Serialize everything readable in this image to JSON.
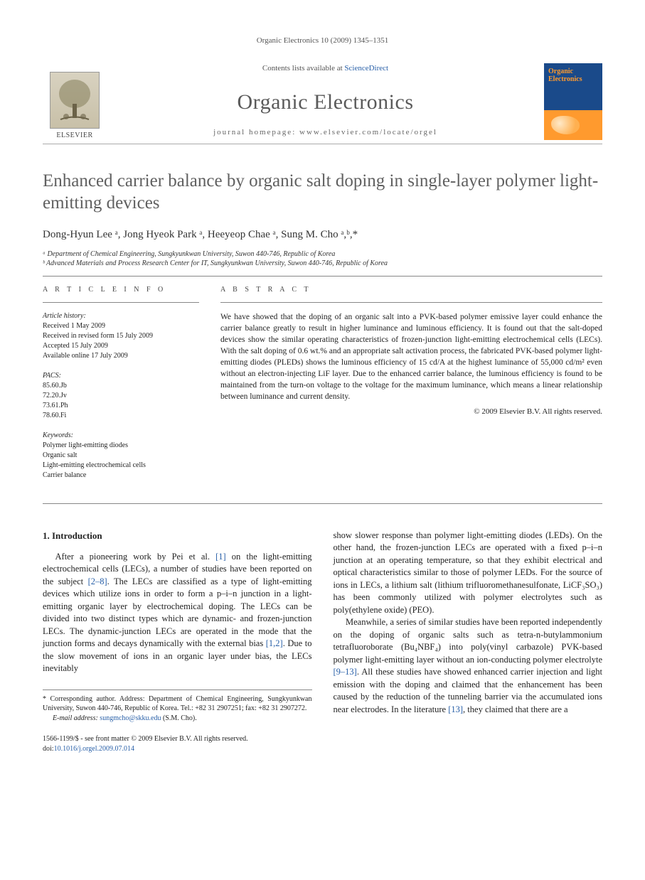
{
  "running_head": "Organic Electronics 10 (2009) 1345–1351",
  "banner": {
    "contents_prefix": "Contents lists available at ",
    "contents_link": "ScienceDirect",
    "journal": "Organic Electronics",
    "homepage_label": "journal homepage: www.elsevier.com/locate/orgel",
    "publisher": "ELSEVIER",
    "cover_title_1": "Organic",
    "cover_title_2": "Electronics"
  },
  "title": "Enhanced carrier balance by organic salt doping in single-layer polymer light-emitting devices",
  "authors_html": "Dong-Hyun Lee ᵃ, Jong Hyeok Park ᵃ, Heeyeop Chae ᵃ, Sung M. Cho ᵃ,ᵇ,*",
  "affiliations": [
    "ᵃ Department of Chemical Engineering, Sungkyunkwan University, Suwon 440-746, Republic of Korea",
    "ᵇ Advanced Materials and Process Research Center for IT, Sungkyunkwan University, Suwon 440-746, Republic of Korea"
  ],
  "article_info": {
    "heading": "A R T I C L E   I N F O",
    "history_label": "Article history:",
    "history": [
      "Received 1 May 2009",
      "Received in revised form 15 July 2009",
      "Accepted 15 July 2009",
      "Available online 17 July 2009"
    ],
    "pacs_label": "PACS:",
    "pacs": [
      "85.60.Jb",
      "72.20.Jv",
      "73.61.Ph",
      "78.60.Fi"
    ],
    "keywords_label": "Keywords:",
    "keywords": [
      "Polymer light-emitting diodes",
      "Organic salt",
      "Light-emitting electrochemical cells",
      "Carrier balance"
    ]
  },
  "abstract": {
    "heading": "A B S T R A C T",
    "text": "We have showed that the doping of an organic salt into a PVK-based polymer emissive layer could enhance the carrier balance greatly to result in higher luminance and luminous efficiency. It is found out that the salt-doped devices show the similar operating characteristics of frozen-junction light-emitting electrochemical cells (LECs). With the salt doping of 0.6 wt.% and an appropriate salt activation process, the fabricated PVK-based polymer light-emitting diodes (PLEDs) shows the luminous efficiency of 15 cd/A at the highest luminance of 55,000 cd/m² even without an electron-injecting LiF layer. Due to the enhanced carrier balance, the luminous efficiency is found to be maintained from the turn-on voltage to the voltage for the maximum luminance, which means a linear relationship between luminance and current density.",
    "copyright": "© 2009 Elsevier B.V. All rights reserved."
  },
  "introduction": {
    "heading": "1. Introduction",
    "left_para": "After a pioneering work by Pei et al. [1] on the light-emitting electrochemical cells (LECs), a number of studies have been reported on the subject [2–8]. The LECs are classified as a type of light-emitting devices which utilize ions in order to form a p–i–n junction in a light-emitting organic layer by electrochemical doping. The LECs can be divided into two distinct types which are dynamic- and frozen-junction LECs. The dynamic-junction LECs are operated in the mode that the junction forms and decays dynamically with the external bias [1,2]. Due to the slow movement of ions in an organic layer under bias, the LECs inevitably",
    "right_para_1": "show slower response than polymer light-emitting diodes (LEDs). On the other hand, the frozen-junction LECs are operated with a fixed p–i–n junction at an operating temperature, so that they exhibit electrical and optical characteristics similar to those of polymer LEDs. For the source of ions in LECs, a lithium salt (lithium trifluoromethanesulfonate, LiCF₃SO₃) has been commonly utilized with polymer electrolytes such as poly(ethylene oxide) (PEO).",
    "right_para_2": "Meanwhile, a series of similar studies have been reported independently on the doping of organic salts such as tetra-n-butylammonium tetrafluoroborate (Bu₄NBF₄) into poly(vinyl carbazole) PVK-based polymer light-emitting layer without an ion-conducting polymer electrolyte [9–13]. All these studies have showed enhanced carrier injection and light emission with the doping and claimed that the enhancement has been caused by the reduction of the tunneling barrier via the accumulated ions near electrodes. In the literature [13], they claimed that there are a"
  },
  "footnotes": {
    "corr": "* Corresponding author. Address: Department of Chemical Engineering, Sungkyunkwan University, Suwon 440-746, Republic of Korea. Tel.: +82 31 2907251; fax: +82 31 2907272.",
    "email_label": "E-mail address: ",
    "email": "sungmcho@skku.edu",
    "email_suffix": " (S.M. Cho)."
  },
  "bottom": {
    "line1": "1566-1199/$ - see front matter © 2009 Elsevier B.V. All rights reserved.",
    "doi_prefix": "doi:",
    "doi": "10.1016/j.orgel.2009.07.014"
  },
  "colors": {
    "link": "#2960a8",
    "title_gray": "#606060",
    "cover_blue": "#1a4a8a",
    "cover_orange": "#ff9a2e"
  }
}
